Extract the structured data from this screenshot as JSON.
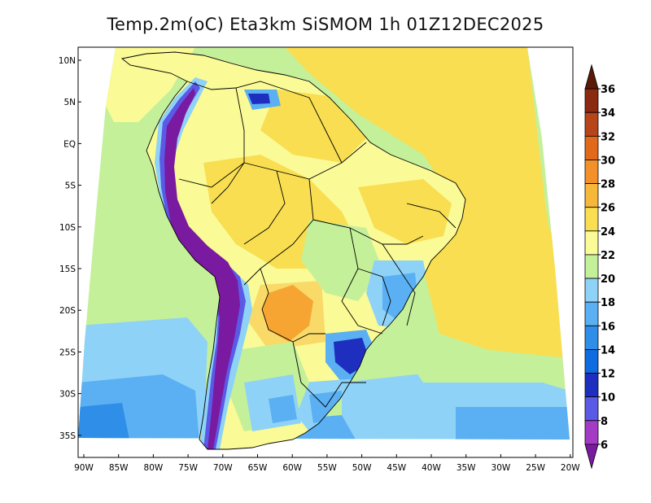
{
  "title": "Temp.2m(oC) Eta3km SiSMOM 1h 01Z12DEC2025",
  "map": {
    "lat_ticks": [
      "10N",
      "5N",
      "EQ",
      "5S",
      "10S",
      "15S",
      "20S",
      "25S",
      "30S",
      "35S"
    ],
    "lon_ticks": [
      "90W",
      "85W",
      "80W",
      "75W",
      "70W",
      "65W",
      "60W",
      "55W",
      "50W",
      "45W",
      "40W",
      "35W",
      "30W",
      "25W",
      "20W"
    ]
  },
  "colorbar": {
    "levels": [
      "6",
      "8",
      "10",
      "12",
      "14",
      "16",
      "18",
      "20",
      "22",
      "24",
      "26",
      "28",
      "30",
      "32",
      "34",
      "36"
    ],
    "colors": [
      "#7a1aa0",
      "#a43bc4",
      "#5a5ae6",
      "#1e2fc0",
      "#0f6be0",
      "#2f8fe8",
      "#5ab0f2",
      "#8fd2f7",
      "#c5f09a",
      "#fafa96",
      "#f8de50",
      "#f7b83a",
      "#f4902a",
      "#e06a1a",
      "#b8441a",
      "#8a2a10",
      "#5a1a08"
    ]
  }
}
